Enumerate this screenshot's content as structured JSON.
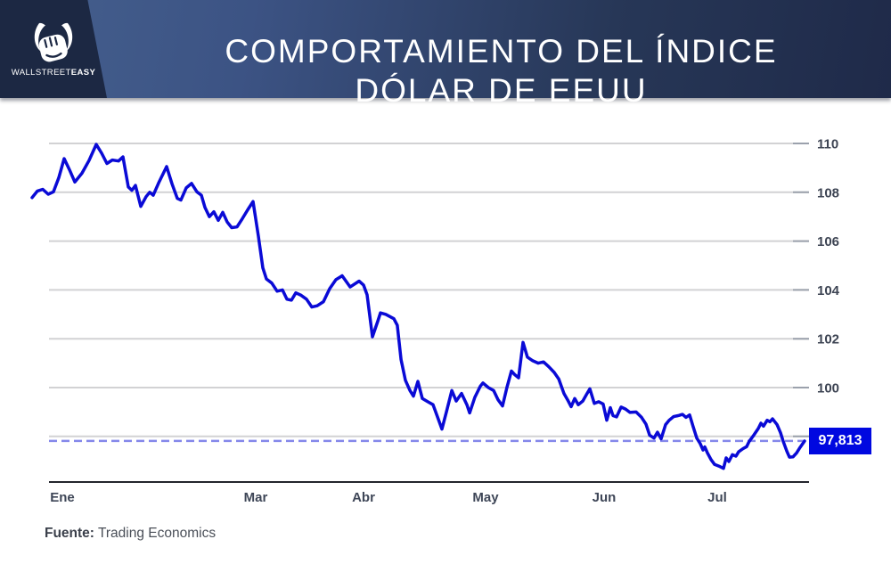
{
  "header": {
    "logo": {
      "brand_regular": "WALLSTREET",
      "brand_bold": "EASY"
    },
    "title_line1": "COMPORTAMIENTO DEL ÍNDICE",
    "title_line2": "DÓLAR DE EEUU"
  },
  "footer": {
    "source_label": "Fuente:",
    "source_value": "Trading Economics"
  },
  "colors": {
    "line": "#0a0ad6",
    "dashed_reference": "#8487ea",
    "value_box_bg": "#0008e0",
    "gridline": "#d2d2d4",
    "tick_stub": "#9ba1ac",
    "axis_line": "#23252c",
    "axis_text": "#3d4453",
    "header_dark": "#1c2843",
    "header_blue": "#45608e"
  },
  "chart_data": {
    "type": "line",
    "title": "Comportamiento del índice dólar de EEUU",
    "x_unit": "months, 0 = Ene (enero), 6 = Jul (julio); fractional = position within month",
    "x_ticks": [
      {
        "label": "Ene",
        "m": 0
      },
      {
        "label": "Mar",
        "m": 2
      },
      {
        "label": "Abr",
        "m": 3
      },
      {
        "label": "May",
        "m": 4
      },
      {
        "label": "Jun",
        "m": 5
      },
      {
        "label": "Jul",
        "m": 6
      }
    ],
    "y_ticks": [
      110,
      108,
      106,
      104,
      102,
      100,
      98
    ],
    "ylim": [
      96,
      111
    ],
    "grid": true,
    "legend": "none",
    "current_value": 97.813,
    "current_label": "97,813",
    "points": [
      [
        -0.313,
        107.78
      ],
      [
        -0.258,
        108.05
      ],
      [
        -0.203,
        108.12
      ],
      [
        -0.147,
        107.92
      ],
      [
        -0.092,
        108.02
      ],
      [
        -0.037,
        108.6
      ],
      [
        0.018,
        109.38
      ],
      [
        0.074,
        108.92
      ],
      [
        0.129,
        108.42
      ],
      [
        0.203,
        108.78
      ],
      [
        0.276,
        109.3
      ],
      [
        0.35,
        109.96
      ],
      [
        0.406,
        109.6
      ],
      [
        0.461,
        109.18
      ],
      [
        0.516,
        109.32
      ],
      [
        0.581,
        109.28
      ],
      [
        0.627,
        109.45
      ],
      [
        0.682,
        108.22
      ],
      [
        0.719,
        108.08
      ],
      [
        0.756,
        108.28
      ],
      [
        0.811,
        107.42
      ],
      [
        0.866,
        107.82
      ],
      [
        0.903,
        108.0
      ],
      [
        0.94,
        107.88
      ],
      [
        0.995,
        108.38
      ],
      [
        1.078,
        109.05
      ],
      [
        1.134,
        108.35
      ],
      [
        1.189,
        107.75
      ],
      [
        1.226,
        107.68
      ],
      [
        1.281,
        108.18
      ],
      [
        1.336,
        108.36
      ],
      [
        1.392,
        108.02
      ],
      [
        1.438,
        107.88
      ],
      [
        1.475,
        107.38
      ],
      [
        1.521,
        107.0
      ],
      [
        1.567,
        107.2
      ],
      [
        1.613,
        106.85
      ],
      [
        1.659,
        107.18
      ],
      [
        1.705,
        106.78
      ],
      [
        1.751,
        106.55
      ],
      [
        1.806,
        106.58
      ],
      [
        1.862,
        106.92
      ],
      [
        1.917,
        107.28
      ],
      [
        1.972,
        107.62
      ],
      [
        2.025,
        106.2
      ],
      [
        2.066,
        104.9
      ],
      [
        2.099,
        104.45
      ],
      [
        2.149,
        104.28
      ],
      [
        2.198,
        103.95
      ],
      [
        2.248,
        104.0
      ],
      [
        2.289,
        103.62
      ],
      [
        2.331,
        103.58
      ],
      [
        2.372,
        103.88
      ],
      [
        2.421,
        103.78
      ],
      [
        2.471,
        103.62
      ],
      [
        2.521,
        103.3
      ],
      [
        2.57,
        103.35
      ],
      [
        2.628,
        103.52
      ],
      [
        2.686,
        104.05
      ],
      [
        2.744,
        104.42
      ],
      [
        2.802,
        104.58
      ],
      [
        2.876,
        104.12
      ],
      [
        2.959,
        104.36
      ],
      [
        3.0,
        104.2
      ],
      [
        3.029,
        103.8
      ],
      [
        3.073,
        102.08
      ],
      [
        3.117,
        102.72
      ],
      [
        3.139,
        103.06
      ],
      [
        3.182,
        103.0
      ],
      [
        3.248,
        102.82
      ],
      [
        3.277,
        102.55
      ],
      [
        3.307,
        101.15
      ],
      [
        3.343,
        100.3
      ],
      [
        3.38,
        99.88
      ],
      [
        3.409,
        99.65
      ],
      [
        3.445,
        100.25
      ],
      [
        3.482,
        99.55
      ],
      [
        3.526,
        99.42
      ],
      [
        3.569,
        99.3
      ],
      [
        3.606,
        98.8
      ],
      [
        3.642,
        98.3
      ],
      [
        3.679,
        99.0
      ],
      [
        3.723,
        99.88
      ],
      [
        3.759,
        99.45
      ],
      [
        3.803,
        99.76
      ],
      [
        3.847,
        99.3
      ],
      [
        3.869,
        98.96
      ],
      [
        3.912,
        99.6
      ],
      [
        3.956,
        100.05
      ],
      [
        3.978,
        100.19
      ],
      [
        4.023,
        100.0
      ],
      [
        4.068,
        99.88
      ],
      [
        4.105,
        99.5
      ],
      [
        4.143,
        99.25
      ],
      [
        4.18,
        100.0
      ],
      [
        4.218,
        100.68
      ],
      [
        4.248,
        100.52
      ],
      [
        4.278,
        100.4
      ],
      [
        4.316,
        101.85
      ],
      [
        4.353,
        101.25
      ],
      [
        4.398,
        101.1
      ],
      [
        4.444,
        101.0
      ],
      [
        4.489,
        101.05
      ],
      [
        4.534,
        100.85
      ],
      [
        4.579,
        100.62
      ],
      [
        4.617,
        100.35
      ],
      [
        4.662,
        99.75
      ],
      [
        4.692,
        99.5
      ],
      [
        4.722,
        99.22
      ],
      [
        4.752,
        99.55
      ],
      [
        4.782,
        99.3
      ],
      [
        4.82,
        99.45
      ],
      [
        4.85,
        99.7
      ],
      [
        4.88,
        99.95
      ],
      [
        4.917,
        99.35
      ],
      [
        4.955,
        99.42
      ],
      [
        4.992,
        99.33
      ],
      [
        5.024,
        98.66
      ],
      [
        5.055,
        99.18
      ],
      [
        5.079,
        98.85
      ],
      [
        5.11,
        98.8
      ],
      [
        5.15,
        99.2
      ],
      [
        5.189,
        99.12
      ],
      [
        5.228,
        98.98
      ],
      [
        5.283,
        99.0
      ],
      [
        5.331,
        98.78
      ],
      [
        5.37,
        98.5
      ],
      [
        5.402,
        98.05
      ],
      [
        5.441,
        97.93
      ],
      [
        5.472,
        98.17
      ],
      [
        5.504,
        97.9
      ],
      [
        5.543,
        98.48
      ],
      [
        5.575,
        98.66
      ],
      [
        5.614,
        98.81
      ],
      [
        5.654,
        98.85
      ],
      [
        5.693,
        98.9
      ],
      [
        5.724,
        98.78
      ],
      [
        5.756,
        98.88
      ],
      [
        5.787,
        98.4
      ],
      [
        5.819,
        97.93
      ],
      [
        5.85,
        97.7
      ],
      [
        5.874,
        97.44
      ],
      [
        5.89,
        97.57
      ],
      [
        5.913,
        97.32
      ],
      [
        5.945,
        97.05
      ],
      [
        5.976,
        96.85
      ],
      [
        6.016,
        96.78
      ],
      [
        6.055,
        96.69
      ],
      [
        6.079,
        97.12
      ],
      [
        6.102,
        96.97
      ],
      [
        6.134,
        97.25
      ],
      [
        6.165,
        97.19
      ],
      [
        6.189,
        97.37
      ],
      [
        6.228,
        97.5
      ],
      [
        6.26,
        97.58
      ],
      [
        6.283,
        97.8
      ],
      [
        6.323,
        98.05
      ],
      [
        6.362,
        98.32
      ],
      [
        6.386,
        98.54
      ],
      [
        6.409,
        98.42
      ],
      [
        6.441,
        98.66
      ],
      [
        6.465,
        98.6
      ],
      [
        6.488,
        98.72
      ],
      [
        6.528,
        98.48
      ],
      [
        6.559,
        98.15
      ],
      [
        6.583,
        97.8
      ],
      [
        6.614,
        97.4
      ],
      [
        6.638,
        97.15
      ],
      [
        6.669,
        97.16
      ],
      [
        6.701,
        97.32
      ],
      [
        6.732,
        97.55
      ],
      [
        6.772,
        97.81
      ]
    ]
  }
}
